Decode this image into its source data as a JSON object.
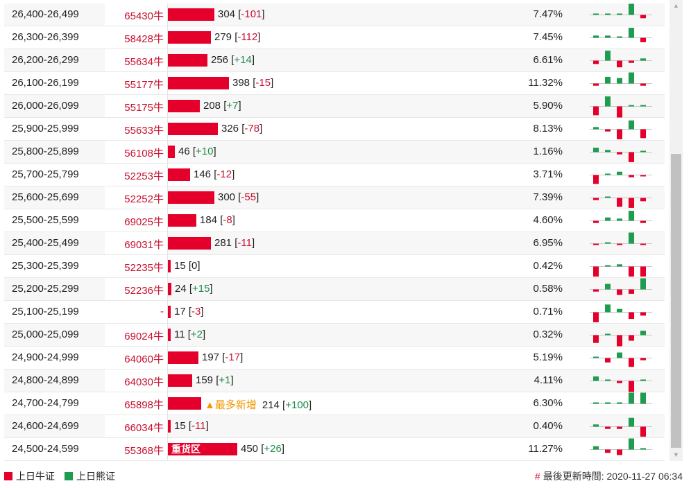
{
  "colors": {
    "bull": "#e4002b",
    "bear": "#1e9c50",
    "accent_text": "#c8102e",
    "highlight": "#f39800"
  },
  "rows": [
    {
      "range": "26,400-26,499",
      "code": "65430牛",
      "bar_value": 304,
      "count": "304",
      "delta": "-101",
      "pct": "7.47%",
      "spark": [
        0,
        0,
        1,
        10,
        -3
      ]
    },
    {
      "range": "26,300-26,399",
      "code": "58428牛",
      "bar_value": 279,
      "count": "279",
      "delta": "-112",
      "pct": "7.45%",
      "spark": [
        2,
        2,
        1,
        9,
        -4
      ]
    },
    {
      "range": "26,200-26,299",
      "code": "55634牛",
      "bar_value": 256,
      "count": "256",
      "delta": "+14",
      "pct": "6.61%",
      "spark": [
        -3,
        9,
        -6,
        -2,
        2
      ]
    },
    {
      "range": "26,100-26,199",
      "code": "55177牛",
      "bar_value": 398,
      "count": "398",
      "delta": "-15",
      "pct": "11.32%",
      "spark": [
        -2,
        6,
        5,
        10,
        -2
      ]
    },
    {
      "range": "26,000-26,099",
      "code": "55175牛",
      "bar_value": 208,
      "count": "208",
      "delta": "+7",
      "pct": "5.90%",
      "spark": [
        -8,
        9,
        -10,
        1,
        1
      ]
    },
    {
      "range": "25,900-25,999",
      "code": "55633牛",
      "bar_value": 326,
      "count": "326",
      "delta": "-78",
      "pct": "8.13%",
      "spark": [
        2,
        -2,
        -9,
        8,
        -8
      ]
    },
    {
      "range": "25,800-25,899",
      "code": "56108牛",
      "bar_value": 46,
      "count": "46",
      "delta": "+10",
      "pct": "1.16%",
      "spark": [
        4,
        2,
        -2,
        -9,
        1
      ]
    },
    {
      "range": "25,700-25,799",
      "code": "52253牛",
      "bar_value": 146,
      "count": "146",
      "delta": "-12",
      "pct": "3.71%",
      "spark": [
        -8,
        1,
        3,
        -2,
        -1
      ]
    },
    {
      "range": "25,600-25,699",
      "code": "52252牛",
      "bar_value": 300,
      "count": "300",
      "delta": "-55",
      "pct": "7.39%",
      "spark": [
        -2,
        0,
        -8,
        -9,
        -3
      ]
    },
    {
      "range": "25,500-25,599",
      "code": "69025牛",
      "bar_value": 184,
      "count": "184",
      "delta": "-8",
      "pct": "4.60%",
      "spark": [
        -2,
        3,
        2,
        9,
        -2
      ]
    },
    {
      "range": "25,400-25,499",
      "code": "69031牛",
      "bar_value": 281,
      "count": "281",
      "delta": "-11",
      "pct": "6.95%",
      "spark": [
        -1,
        0,
        -1,
        10,
        -1
      ]
    },
    {
      "range": "25,300-25,399",
      "code": "52235牛",
      "bar_value": 15,
      "count": "15",
      "delta": "0",
      "pct": "0.42%",
      "spark": [
        -9,
        0,
        2,
        -9,
        -9
      ]
    },
    {
      "range": "25,200-25,299",
      "code": "52236牛",
      "bar_value": 24,
      "count": "24",
      "delta": "+15",
      "pct": "0.58%",
      "spark": [
        -2,
        5,
        -5,
        -4,
        10
      ]
    },
    {
      "range": "25,100-25,199",
      "code": "-",
      "bar_value": 17,
      "count": "17",
      "delta": "-3",
      "pct": "0.71%",
      "spark": [
        -9,
        7,
        3,
        -6,
        -3
      ]
    },
    {
      "range": "25,000-25,099",
      "code": "69024牛",
      "bar_value": 11,
      "count": "11",
      "delta": "+2",
      "pct": "0.32%",
      "spark": [
        -7,
        0,
        -10,
        -5,
        4
      ]
    },
    {
      "range": "24,900-24,999",
      "code": "64060牛",
      "bar_value": 197,
      "count": "197",
      "delta": "-17",
      "pct": "5.19%",
      "spark": [
        0,
        -4,
        5,
        -8,
        -2
      ]
    },
    {
      "range": "24,800-24,899",
      "code": "64030牛",
      "bar_value": 159,
      "count": "159",
      "delta": "+1",
      "pct": "4.11%",
      "spark": [
        4,
        1,
        -2,
        -10,
        1
      ]
    },
    {
      "range": "24,700-24,799",
      "code": "65898牛",
      "bar_value": 214,
      "count": "214",
      "delta": "+100",
      "pct": "6.30%",
      "spark": [
        0,
        0,
        0,
        10,
        10
      ],
      "badge": "▲最多新增"
    },
    {
      "range": "24,600-24,699",
      "code": "66034牛",
      "bar_value": 15,
      "count": "15",
      "delta": "-11",
      "pct": "0.40%",
      "spark": [
        2,
        -2,
        -2,
        8,
        -9
      ]
    },
    {
      "range": "24,500-24,599",
      "code": "55368牛",
      "bar_value": 450,
      "count": "450",
      "delta": "+26",
      "pct": "11.27%",
      "spark": [
        3,
        -3,
        -5,
        10,
        1
      ],
      "bar_label": "重货区"
    }
  ],
  "legend": {
    "bull_label": "上日牛证",
    "bear_label": "上日熊证"
  },
  "update": {
    "prefix": "#",
    "label": "最後更新時間: 2020-11-27 06:34"
  },
  "scrollbar": {
    "up_icon": "▲",
    "down_icon": "▼"
  }
}
